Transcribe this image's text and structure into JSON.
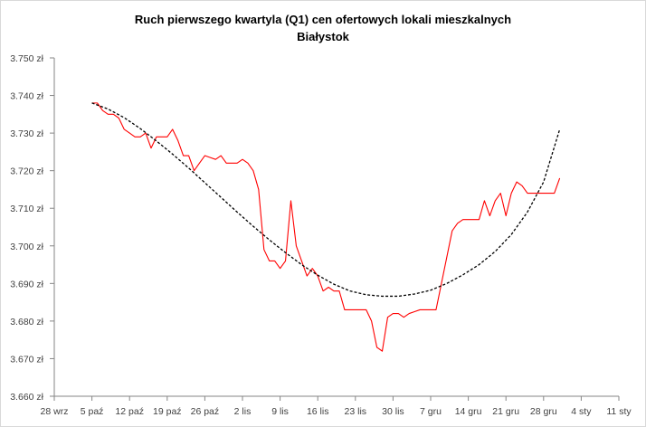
{
  "chart_data": {
    "type": "line",
    "title": "Ruch pierwszego kwartyla (Q1) cen ofertowych lokali mieszkalnych",
    "subtitle": "Białystok",
    "xlabel": "",
    "ylabel": "",
    "x_tick_labels": [
      "28 wrz",
      "5 paź",
      "12 paź",
      "19 paź",
      "26 paź",
      "2 lis",
      "9 lis",
      "16 lis",
      "23 lis",
      "30 lis",
      "7 gru",
      "14 gru",
      "21 gru",
      "28 gru",
      "4 sty",
      "11 sty"
    ],
    "y_tick_labels": [
      "3.660 zł",
      "3.670 zł",
      "3.680 zł",
      "3.690 zł",
      "3.700 zł",
      "3.710 zł",
      "3.720 zł",
      "3.730 zł",
      "3.740 zł",
      "3.750 zł"
    ],
    "y_ticks": [
      3660,
      3670,
      3680,
      3690,
      3700,
      3710,
      3720,
      3730,
      3740,
      3750
    ],
    "ylim": [
      3660,
      3750
    ],
    "x_start": "2015-09-28",
    "xlim_days": [
      0,
      105
    ],
    "grid": false,
    "legend": "none",
    "series": [
      {
        "style": "solid",
        "color": "#ff0000",
        "points": [
          [
            7,
            3738
          ],
          [
            8,
            3738
          ],
          [
            9,
            3736
          ],
          [
            10,
            3735
          ],
          [
            11,
            3735
          ],
          [
            12,
            3734
          ],
          [
            13,
            3731
          ],
          [
            14,
            3730
          ],
          [
            15,
            3729
          ],
          [
            16,
            3729
          ],
          [
            17,
            3730
          ],
          [
            18,
            3726
          ],
          [
            19,
            3729
          ],
          [
            20,
            3729
          ],
          [
            21,
            3729
          ],
          [
            22,
            3731
          ],
          [
            23,
            3728
          ],
          [
            24,
            3724
          ],
          [
            25,
            3724
          ],
          [
            26,
            3720
          ],
          [
            27,
            3722
          ],
          [
            28,
            3724
          ],
          [
            29,
            3723.5
          ],
          [
            30,
            3723
          ],
          [
            31,
            3724
          ],
          [
            32,
            3722
          ],
          [
            33,
            3722
          ],
          [
            34,
            3722
          ],
          [
            35,
            3723
          ],
          [
            36,
            3722
          ],
          [
            37,
            3720
          ],
          [
            38,
            3715
          ],
          [
            39,
            3699
          ],
          [
            40,
            3696
          ],
          [
            41,
            3696
          ],
          [
            42,
            3694
          ],
          [
            43,
            3696
          ],
          [
            44,
            3712
          ],
          [
            45,
            3700
          ],
          [
            46,
            3696
          ],
          [
            47,
            3692
          ],
          [
            48,
            3694
          ],
          [
            49,
            3692
          ],
          [
            50,
            3688
          ],
          [
            51,
            3689
          ],
          [
            52,
            3688
          ],
          [
            53,
            3688
          ],
          [
            54,
            3683
          ],
          [
            55,
            3683
          ],
          [
            56,
            3683
          ],
          [
            57,
            3683
          ],
          [
            58,
            3683
          ],
          [
            59,
            3680
          ],
          [
            60,
            3673
          ],
          [
            61,
            3672
          ],
          [
            62,
            3681
          ],
          [
            63,
            3682
          ],
          [
            64,
            3682
          ],
          [
            65,
            3681
          ],
          [
            66,
            3682
          ],
          [
            67,
            3682.5
          ],
          [
            68,
            3683
          ],
          [
            69,
            3683
          ],
          [
            70,
            3683
          ],
          [
            71,
            3683
          ],
          [
            72,
            3690
          ],
          [
            73,
            3697
          ],
          [
            74,
            3704
          ],
          [
            75,
            3706
          ],
          [
            76,
            3707
          ],
          [
            77,
            3707
          ],
          [
            78,
            3707
          ],
          [
            79,
            3707
          ],
          [
            80,
            3712
          ],
          [
            81,
            3708
          ],
          [
            82,
            3712
          ],
          [
            83,
            3714
          ],
          [
            84,
            3708
          ],
          [
            85,
            3714
          ],
          [
            86,
            3717
          ],
          [
            87,
            3716
          ],
          [
            88,
            3714
          ],
          [
            89,
            3714
          ],
          [
            90,
            3714
          ],
          [
            91,
            3714
          ],
          [
            92,
            3714
          ],
          [
            93,
            3714
          ],
          [
            94,
            3718
          ]
        ]
      },
      {
        "style": "dashed",
        "color": "#000000",
        "points": [
          [
            7,
            3738
          ],
          [
            10,
            3736.4
          ],
          [
            13,
            3734.1
          ],
          [
            16,
            3731.2
          ],
          [
            19,
            3727.9
          ],
          [
            22,
            3724.4
          ],
          [
            25,
            3720.7
          ],
          [
            28,
            3716.8
          ],
          [
            31,
            3712.9
          ],
          [
            34,
            3709.0
          ],
          [
            37,
            3705.2
          ],
          [
            40,
            3701.6
          ],
          [
            43,
            3698.2
          ],
          [
            46,
            3695.0
          ],
          [
            49,
            3692.2
          ],
          [
            52,
            3689.8
          ],
          [
            55,
            3688.0
          ],
          [
            58,
            3687.0
          ],
          [
            61,
            3686.6
          ],
          [
            64,
            3686.6
          ],
          [
            67,
            3687.2
          ],
          [
            70,
            3688.2
          ],
          [
            73,
            3690.0
          ],
          [
            76,
            3692.3
          ],
          [
            79,
            3695.0
          ],
          [
            82,
            3698.5
          ],
          [
            85,
            3703.0
          ],
          [
            88,
            3709.0
          ],
          [
            91,
            3717.0
          ],
          [
            94,
            3731.0
          ]
        ]
      }
    ]
  }
}
